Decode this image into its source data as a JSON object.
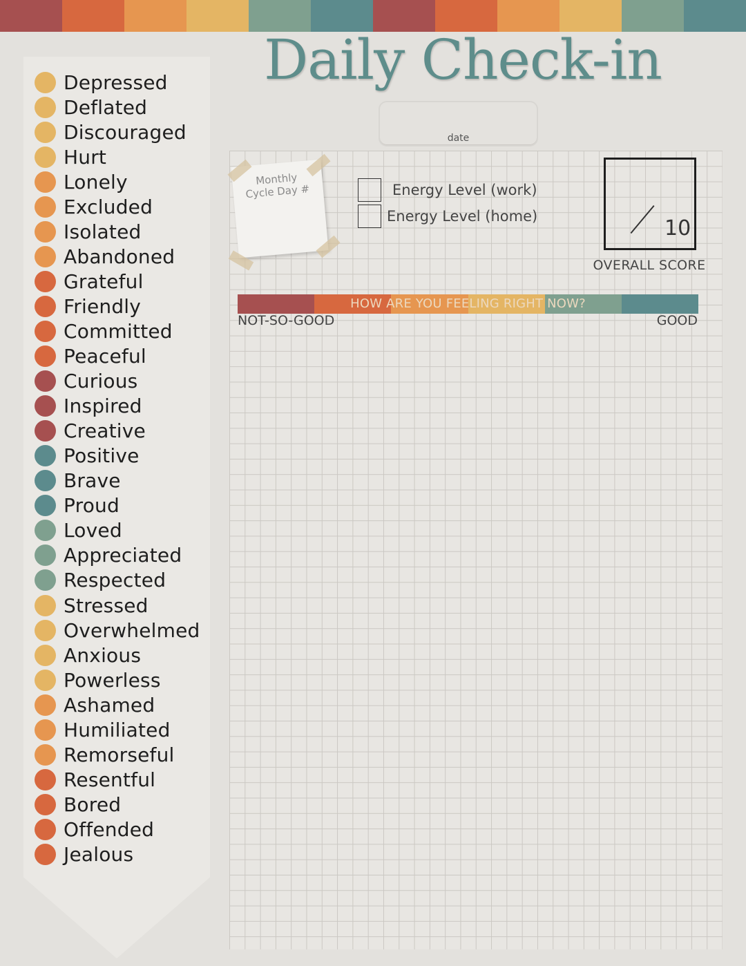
{
  "colors": {
    "red": "#a65050",
    "orange_dark": "#d7683f",
    "orange": "#e69650",
    "yellow": "#e4b564",
    "sage": "#7fa08f",
    "teal": "#5c8b8d",
    "title": "#5e8d8b"
  },
  "stripe_colors": [
    "#a65050",
    "#d7683f",
    "#e69650",
    "#e4b564",
    "#7fa08f",
    "#5c8b8d",
    "#a65050",
    "#d7683f",
    "#e69650",
    "#e4b564",
    "#7fa08f",
    "#5c8b8d"
  ],
  "feeling_bar_colors": [
    "#a65050",
    "#d7683f",
    "#e69650",
    "#e4b564",
    "#7fa08f",
    "#5c8b8d"
  ],
  "header": {
    "title": "Daily Check-in",
    "date_label": "date"
  },
  "note": {
    "line1": "Monthly",
    "line2": "Cycle Day #"
  },
  "energy": {
    "work_label": "Energy Level (work)",
    "home_label": "Energy Level (home)"
  },
  "score": {
    "denominator": "10",
    "label": "OVERALL SCORE"
  },
  "feeling": {
    "prompt": "HOW ARE YOU FEELING RIGHT NOW?",
    "low": "NOT-SO-GOOD",
    "high": "GOOD"
  },
  "moods": [
    {
      "label": "Depressed",
      "color": "#e4b564"
    },
    {
      "label": "Deflated",
      "color": "#e4b564"
    },
    {
      "label": "Discouraged",
      "color": "#e4b564"
    },
    {
      "label": "Hurt",
      "color": "#e4b564"
    },
    {
      "label": "Lonely",
      "color": "#e69650"
    },
    {
      "label": "Excluded",
      "color": "#e69650"
    },
    {
      "label": "Isolated",
      "color": "#e69650"
    },
    {
      "label": "Abandoned",
      "color": "#e69650"
    },
    {
      "label": "Grateful",
      "color": "#d7683f"
    },
    {
      "label": "Friendly",
      "color": "#d7683f"
    },
    {
      "label": "Committed",
      "color": "#d7683f"
    },
    {
      "label": "Peaceful",
      "color": "#d7683f"
    },
    {
      "label": "Curious",
      "color": "#a65050"
    },
    {
      "label": "Inspired",
      "color": "#a65050"
    },
    {
      "label": "Creative",
      "color": "#a65050"
    },
    {
      "label": "Positive",
      "color": "#5c8b8d"
    },
    {
      "label": "Brave",
      "color": "#5c8b8d"
    },
    {
      "label": "Proud",
      "color": "#5c8b8d"
    },
    {
      "label": "Loved",
      "color": "#7fa08f"
    },
    {
      "label": "Appreciated",
      "color": "#7fa08f"
    },
    {
      "label": "Respected",
      "color": "#7fa08f"
    },
    {
      "label": "Stressed",
      "color": "#e4b564"
    },
    {
      "label": "Overwhelmed",
      "color": "#e4b564"
    },
    {
      "label": "Anxious",
      "color": "#e4b564"
    },
    {
      "label": "Powerless",
      "color": "#e4b564"
    },
    {
      "label": "Ashamed",
      "color": "#e69650"
    },
    {
      "label": "Humiliated",
      "color": "#e69650"
    },
    {
      "label": "Remorseful",
      "color": "#e69650"
    },
    {
      "label": "Resentful",
      "color": "#d7683f"
    },
    {
      "label": "Bored",
      "color": "#d7683f"
    },
    {
      "label": "Offended",
      "color": "#d7683f"
    },
    {
      "label": "Jealous",
      "color": "#d7683f"
    }
  ]
}
